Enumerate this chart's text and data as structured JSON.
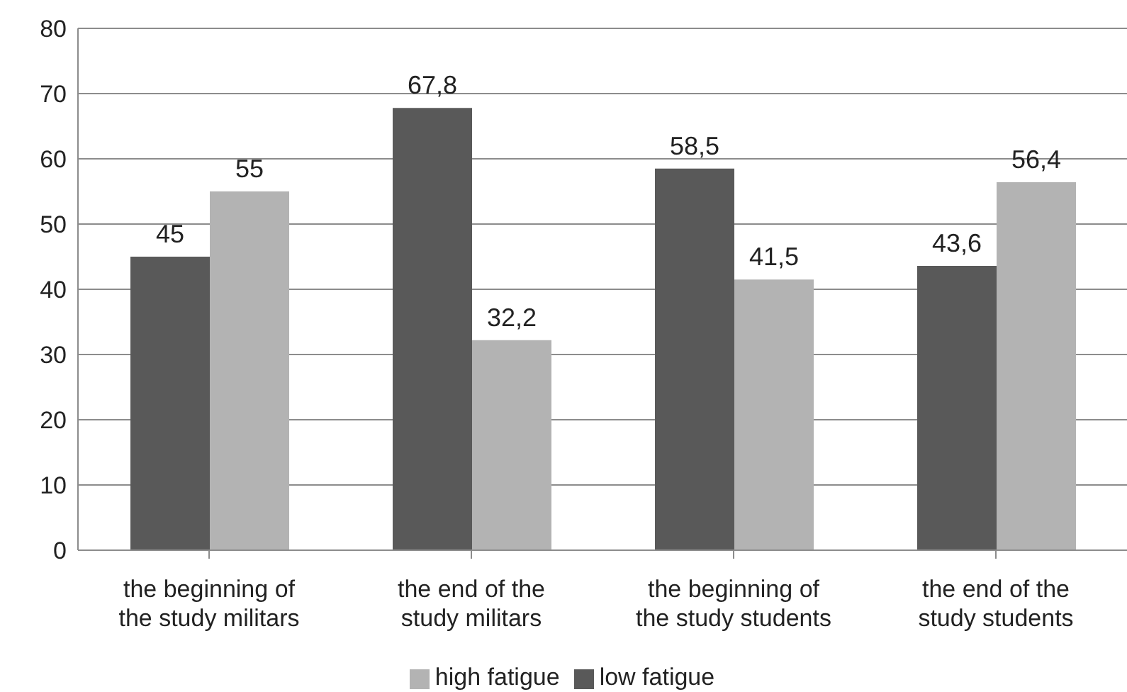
{
  "chart_data": {
    "type": "bar",
    "categories": [
      "the beginning of the study militars",
      "the end of the study militars",
      "the beginning of the study students",
      "the end of the study students"
    ],
    "series": [
      {
        "name": "low fatigue",
        "color": "#595959",
        "values": [
          45,
          67.8,
          58.5,
          43.6
        ],
        "value_labels": [
          "45",
          "67,8",
          "58,5",
          "43,6"
        ]
      },
      {
        "name": "high fatigue",
        "color": "#b3b3b3",
        "values": [
          55,
          32.2,
          41.5,
          56.4
        ],
        "value_labels": [
          "55",
          "32,2",
          "41,5",
          "56,4"
        ]
      }
    ],
    "ylim": [
      0,
      80
    ],
    "yticks": [
      0,
      10,
      20,
      30,
      40,
      50,
      60,
      70,
      80
    ],
    "grid": "y",
    "legend": "bottom"
  }
}
